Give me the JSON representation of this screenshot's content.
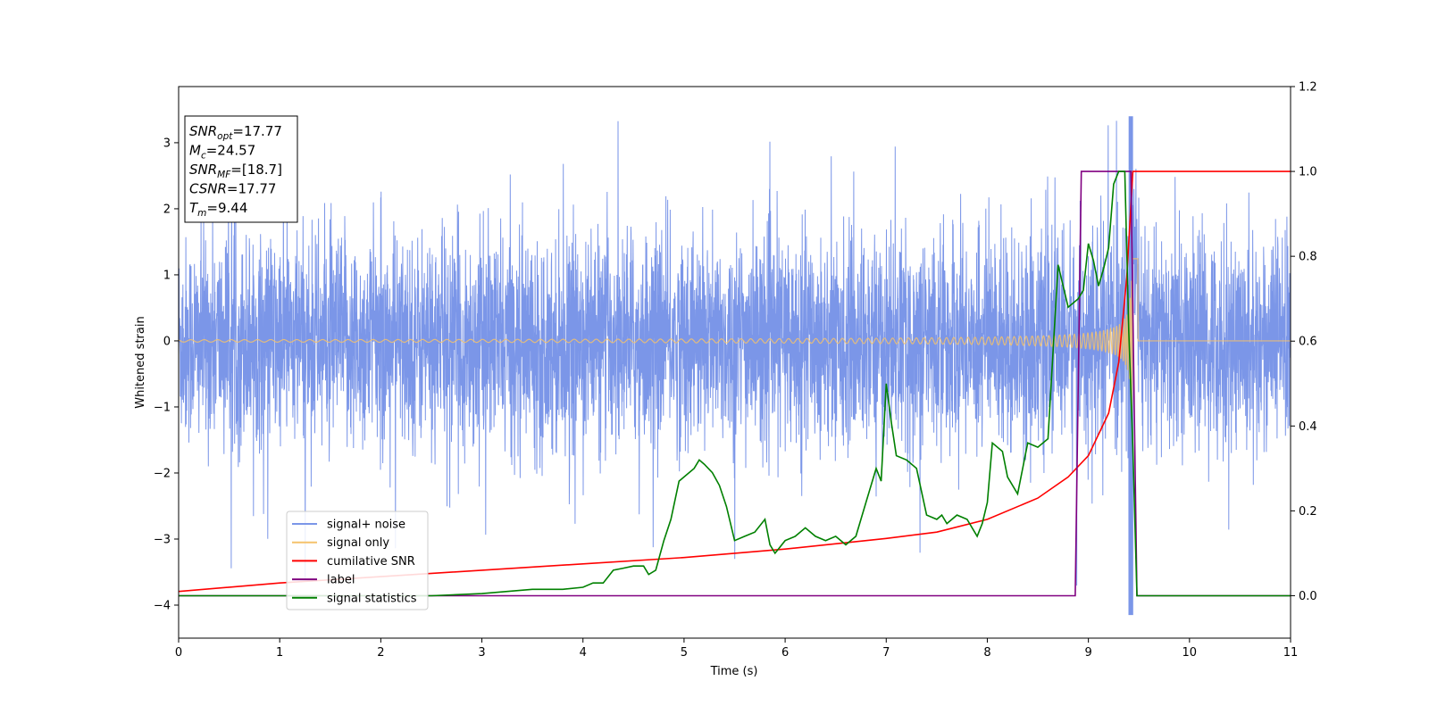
{
  "chart_data": {
    "type": "line",
    "xlabel": "Time (s)",
    "ylabel": "Whitened strain",
    "xlim": [
      0,
      11
    ],
    "ylim": [
      -4.5,
      3.85
    ],
    "y2lim": [
      -0.1,
      1.2
    ],
    "x_ticks": [
      "0",
      "1",
      "2",
      "3",
      "4",
      "5",
      "6",
      "7",
      "8",
      "9",
      "10",
      "11"
    ],
    "y_ticks": [
      "−4",
      "−3",
      "−2",
      "−1",
      "0",
      "1",
      "2",
      "3"
    ],
    "y2_ticks": [
      "0.0",
      "0.2",
      "0.4",
      "0.6",
      "0.8",
      "1.0",
      "1.2"
    ],
    "grid": false,
    "legend_position": "lower-left",
    "annotation": [
      {
        "base": "SNR",
        "sub": "opt",
        "rest": "=17.77"
      },
      {
        "base": "M",
        "sub": "c",
        "rest": "=24.57"
      },
      {
        "base": "SNR",
        "sub": "MF",
        "rest": "=[18.7]"
      },
      {
        "base": "CSNR",
        "sub": "",
        "rest": "=17.77"
      },
      {
        "base": "T",
        "sub": "m",
        "rest": "=9.44"
      }
    ],
    "series": [
      {
        "name": "signal+ noise",
        "color": "#7b96e8",
        "axis": "left",
        "description_envelope": {
          "min": -4.2,
          "max": 3.5
        }
      },
      {
        "name": "signal only",
        "color": "#f5c26b",
        "axis": "left",
        "merger_time": 9.44
      },
      {
        "name": "cumilative SNR",
        "color": "#ff0000",
        "axis": "right",
        "x": [
          0,
          1,
          2,
          3,
          4,
          5,
          6,
          7,
          7.5,
          8,
          8.5,
          8.8,
          9.0,
          9.2,
          9.3,
          9.38,
          9.44,
          11
        ],
        "y": [
          0.01,
          0.03,
          0.045,
          0.06,
          0.075,
          0.09,
          0.11,
          0.135,
          0.15,
          0.18,
          0.23,
          0.28,
          0.33,
          0.43,
          0.55,
          0.75,
          1.0,
          1.0
        ]
      },
      {
        "name": "label",
        "color": "#800080",
        "axis": "right",
        "x": [
          0,
          8.87,
          8.93,
          9.42,
          9.48,
          11
        ],
        "y": [
          0,
          0,
          1,
          1,
          0,
          0
        ]
      },
      {
        "name": "signal statistics",
        "color": "#008000",
        "axis": "right",
        "x": [
          0,
          2.5,
          3.0,
          3.5,
          3.8,
          4.0,
          4.1,
          4.2,
          4.3,
          4.4,
          4.5,
          4.6,
          4.65,
          4.72,
          4.8,
          4.87,
          4.95,
          5.0,
          5.1,
          5.15,
          5.2,
          5.28,
          5.35,
          5.42,
          5.5,
          5.6,
          5.7,
          5.8,
          5.85,
          5.9,
          6.0,
          6.1,
          6.2,
          6.3,
          6.4,
          6.5,
          6.6,
          6.7,
          6.8,
          6.9,
          6.95,
          7.0,
          7.05,
          7.1,
          7.2,
          7.3,
          7.4,
          7.5,
          7.55,
          7.6,
          7.7,
          7.8,
          7.9,
          7.95,
          8.0,
          8.05,
          8.15,
          8.2,
          8.3,
          8.4,
          8.5,
          8.6,
          8.7,
          8.8,
          8.9,
          8.95,
          9.0,
          9.05,
          9.1,
          9.15,
          9.2,
          9.25,
          9.3,
          9.36,
          9.4,
          9.44,
          9.48,
          9.52,
          11
        ],
        "y": [
          0,
          0,
          0.005,
          0.015,
          0.015,
          0.02,
          0.03,
          0.03,
          0.06,
          0.065,
          0.07,
          0.07,
          0.05,
          0.06,
          0.13,
          0.18,
          0.27,
          0.28,
          0.3,
          0.32,
          0.31,
          0.29,
          0.26,
          0.21,
          0.13,
          0.14,
          0.15,
          0.18,
          0.12,
          0.1,
          0.13,
          0.14,
          0.16,
          0.14,
          0.13,
          0.14,
          0.12,
          0.14,
          0.22,
          0.3,
          0.27,
          0.5,
          0.41,
          0.33,
          0.32,
          0.3,
          0.19,
          0.18,
          0.19,
          0.17,
          0.19,
          0.18,
          0.14,
          0.17,
          0.22,
          0.36,
          0.34,
          0.28,
          0.24,
          0.36,
          0.35,
          0.37,
          0.78,
          0.68,
          0.7,
          0.72,
          0.83,
          0.79,
          0.73,
          0.77,
          0.82,
          0.97,
          1.0,
          1.0,
          0.62,
          0.35,
          0.0,
          0.0,
          0.0
        ]
      }
    ]
  }
}
